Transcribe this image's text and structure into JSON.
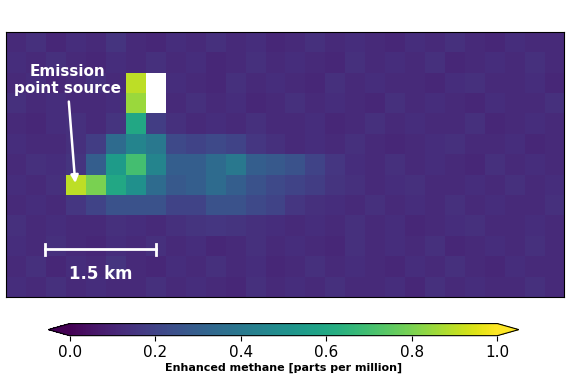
{
  "chart_data": {
    "type": "heatmap",
    "xlim": [
      0,
      7.6
    ],
    "ylim": [
      0,
      3.6
    ],
    "tick_labels": false,
    "cells": [
      [
        0.12,
        0.14,
        0.11,
        0.13,
        0.12,
        0.15,
        0.12,
        0.11,
        0.13,
        0.12,
        0.14,
        0.12,
        0.13,
        0.11,
        0.12,
        0.14,
        0.12,
        0.13,
        0.12,
        0.11,
        0.13,
        0.12,
        0.14,
        0.12,
        0.11,
        0.13,
        0.12,
        0.12
      ],
      [
        0.13,
        0.12,
        0.14,
        0.12,
        0.11,
        0.13,
        0.12,
        0.14,
        0.12,
        0.13,
        0.11,
        0.12,
        0.14,
        0.12,
        0.13,
        0.12,
        0.11,
        0.14,
        0.12,
        0.13,
        0.12,
        0.14,
        0.11,
        0.12,
        0.13,
        0.12,
        0.14,
        0.12
      ],
      [
        0.12,
        0.13,
        0.11,
        0.12,
        0.14,
        0.12,
        0.9,
        null,
        0.13,
        0.12,
        0.11,
        0.14,
        0.12,
        0.13,
        0.12,
        0.11,
        0.14,
        0.12,
        0.13,
        0.12,
        0.12,
        0.11,
        0.13,
        0.14,
        0.12,
        0.12,
        0.13,
        0.11
      ],
      [
        0.14,
        0.12,
        0.13,
        0.12,
        0.12,
        0.13,
        0.85,
        null,
        0.12,
        0.14,
        0.12,
        0.13,
        0.11,
        0.12,
        0.14,
        0.12,
        0.13,
        0.12,
        0.11,
        0.14,
        0.12,
        0.13,
        0.12,
        0.11,
        0.13,
        0.12,
        0.12,
        0.14
      ],
      [
        0.12,
        0.11,
        0.13,
        0.14,
        0.12,
        0.15,
        0.6,
        0.18,
        0.14,
        0.12,
        0.13,
        0.12,
        0.14,
        0.12,
        0.12,
        0.13,
        0.11,
        0.12,
        0.14,
        0.12,
        0.13,
        0.12,
        0.12,
        0.14,
        0.11,
        0.12,
        0.13,
        0.12
      ],
      [
        0.13,
        0.12,
        0.12,
        0.14,
        0.18,
        0.35,
        0.45,
        0.4,
        0.22,
        0.2,
        0.22,
        0.2,
        0.16,
        0.14,
        0.12,
        0.13,
        0.12,
        0.14,
        0.12,
        0.11,
        0.12,
        0.13,
        0.14,
        0.12,
        0.12,
        0.13,
        0.11,
        0.12
      ],
      [
        0.12,
        0.14,
        0.13,
        0.15,
        0.3,
        0.55,
        0.7,
        0.45,
        0.3,
        0.3,
        0.35,
        0.4,
        0.3,
        0.28,
        0.25,
        0.2,
        0.16,
        0.13,
        0.12,
        0.14,
        0.12,
        0.13,
        0.12,
        0.11,
        0.14,
        0.12,
        0.13,
        0.12
      ],
      [
        0.13,
        0.12,
        0.14,
        0.9,
        0.8,
        0.6,
        0.5,
        0.35,
        0.28,
        0.3,
        0.35,
        0.3,
        0.25,
        0.22,
        0.2,
        0.18,
        0.15,
        0.14,
        0.12,
        0.13,
        0.14,
        0.12,
        0.12,
        0.13,
        0.12,
        0.14,
        0.12,
        0.13
      ],
      [
        0.12,
        0.13,
        0.12,
        0.16,
        0.2,
        0.25,
        0.25,
        0.25,
        0.2,
        0.2,
        0.25,
        0.25,
        0.22,
        0.2,
        0.16,
        0.14,
        0.13,
        0.12,
        0.14,
        0.12,
        0.13,
        0.12,
        0.14,
        0.12,
        0.13,
        0.12,
        0.12,
        0.14
      ],
      [
        0.14,
        0.12,
        0.13,
        0.12,
        0.12,
        0.14,
        0.13,
        0.12,
        0.14,
        0.15,
        0.16,
        0.15,
        0.14,
        0.13,
        0.12,
        0.13,
        0.12,
        0.14,
        0.12,
        0.13,
        0.11,
        0.12,
        0.13,
        0.14,
        0.12,
        0.12,
        0.13,
        0.12
      ],
      [
        0.13,
        0.12,
        0.14,
        0.12,
        0.11,
        0.13,
        0.12,
        0.14,
        0.12,
        0.13,
        0.11,
        0.12,
        0.14,
        0.12,
        0.13,
        0.12,
        0.11,
        0.14,
        0.12,
        0.13,
        0.12,
        0.14,
        0.11,
        0.12,
        0.13,
        0.12,
        0.14,
        0.12
      ],
      [
        0.12,
        0.14,
        0.11,
        0.13,
        0.12,
        0.15,
        0.12,
        0.11,
        0.13,
        0.12,
        0.14,
        0.12,
        0.13,
        0.11,
        0.12,
        0.14,
        0.12,
        0.13,
        0.12,
        0.11,
        0.13,
        0.12,
        0.14,
        0.12,
        0.11,
        0.13,
        0.12,
        0.12
      ],
      [
        0.13,
        0.12,
        0.14,
        0.12,
        0.13,
        0.12,
        0.12,
        0.14,
        0.12,
        0.13,
        0.12,
        0.11,
        0.14,
        0.12,
        0.13,
        0.12,
        0.14,
        0.12,
        0.12,
        0.13,
        0.11,
        0.14,
        0.12,
        0.13,
        0.12,
        0.12,
        0.14,
        0.12
      ]
    ],
    "colorbar": {
      "label": "Enhanced methane [parts per million]",
      "range": [
        0,
        1.0
      ],
      "ticks": [
        {
          "value": 0,
          "label": "0.0"
        },
        {
          "value": 0.2,
          "label": "0.2"
        },
        {
          "value": 0.4,
          "label": "0.4"
        },
        {
          "value": 0.6,
          "label": "0.6"
        },
        {
          "value": 0.8,
          "label": "0.8"
        },
        {
          "value": 1.0,
          "label": "1.0"
        }
      ]
    },
    "annotations": [
      {
        "text": "Emission\npoint source"
      }
    ],
    "scale_bar": {
      "length": 1.5,
      "label": "1.5 km"
    }
  }
}
